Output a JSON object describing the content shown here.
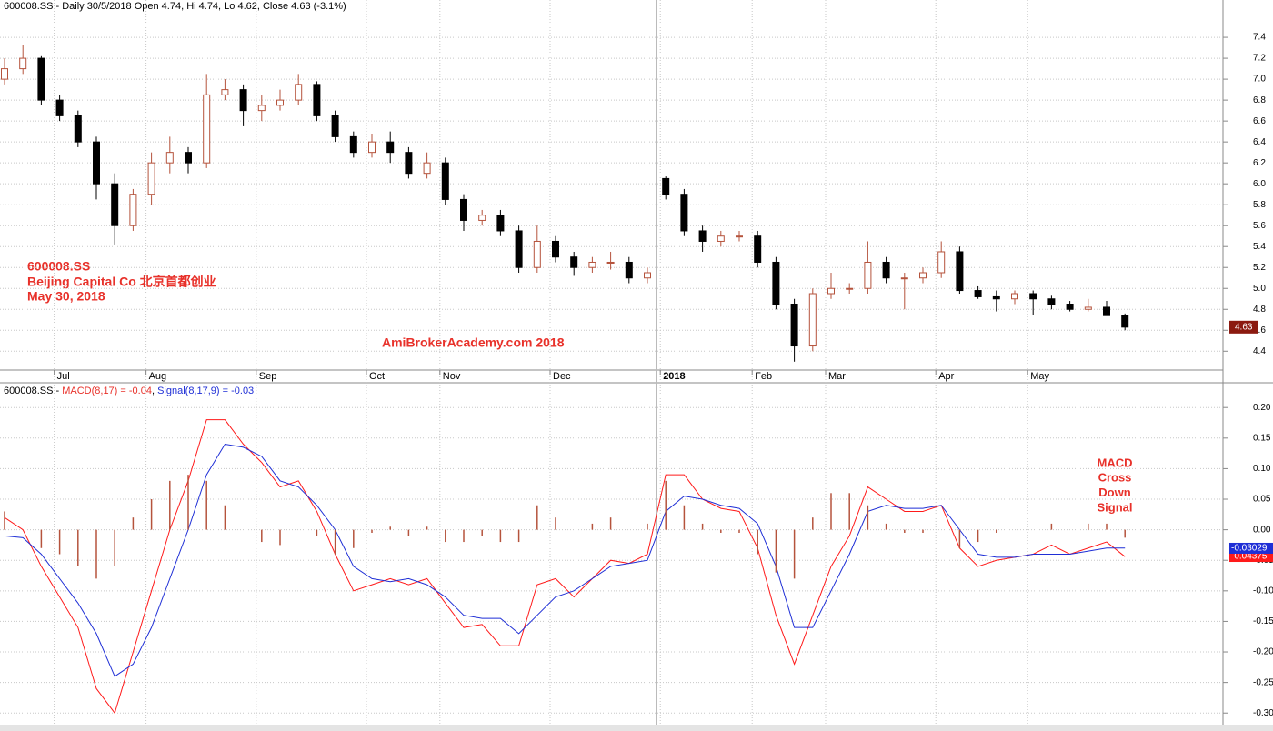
{
  "chart_data": [
    {
      "type": "candlestick",
      "title": "600008.SS - Daily 30/5/2018 Open 4.74, Hi 4.74, Lo 4.62, Close 4.63 (-3.1%)",
      "annotations": [
        "600008.SS",
        "Beijing Capital Co   北京首都创业",
        "May 30, 2018",
        "AmiBrokerAcademy.com   2018"
      ],
      "categories": [
        null,
        null,
        null,
        "Jul",
        null,
        null,
        null,
        null,
        "Aug",
        null,
        null,
        null,
        null,
        null,
        "Sep",
        null,
        null,
        null,
        null,
        null,
        "Oct",
        null,
        null,
        null,
        "Nov",
        null,
        null,
        null,
        null,
        null,
        "Dec",
        null,
        null,
        null,
        null,
        null,
        "2018",
        null,
        null,
        null,
        null,
        "Feb",
        null,
        null,
        null,
        "Mar",
        null,
        null,
        null,
        null,
        null,
        "Apr",
        null,
        null,
        null,
        null,
        "May",
        null,
        null,
        null,
        null,
        null
      ],
      "open": [
        7.0,
        7.1,
        7.2,
        6.8,
        6.65,
        6.4,
        6.0,
        5.6,
        5.9,
        6.2,
        6.3,
        6.2,
        6.85,
        6.9,
        6.7,
        6.75,
        6.8,
        6.95,
        6.65,
        6.45,
        6.3,
        6.4,
        6.3,
        6.1,
        6.2,
        5.85,
        5.65,
        5.7,
        5.55,
        5.2,
        5.45,
        5.3,
        5.2,
        5.25,
        5.25,
        5.1,
        6.05,
        5.9,
        5.55,
        5.45,
        5.5,
        5.5,
        5.25,
        4.85,
        4.45,
        4.95,
        5.0,
        5.0,
        5.25,
        5.1,
        5.1,
        5.15,
        5.35,
        4.98,
        4.92,
        4.9,
        4.95,
        4.9,
        4.85,
        4.8,
        4.82,
        4.74
      ],
      "high": [
        7.2,
        7.33,
        7.22,
        6.85,
        6.7,
        6.45,
        6.1,
        5.95,
        6.3,
        6.45,
        6.35,
        7.05,
        7.0,
        6.95,
        6.85,
        6.9,
        7.05,
        6.98,
        6.7,
        6.5,
        6.48,
        6.5,
        6.35,
        6.3,
        6.25,
        5.9,
        5.75,
        5.75,
        5.6,
        5.6,
        5.5,
        5.35,
        5.3,
        5.35,
        5.3,
        5.2,
        6.07,
        5.95,
        5.6,
        5.55,
        5.55,
        5.55,
        5.3,
        4.9,
        5.0,
        5.15,
        5.05,
        5.45,
        5.3,
        5.15,
        5.2,
        5.45,
        5.4,
        5.02,
        4.98,
        4.98,
        4.98,
        4.93,
        4.88,
        4.9,
        4.88,
        4.76
      ],
      "low": [
        6.95,
        7.05,
        6.75,
        6.6,
        6.35,
        5.85,
        5.42,
        5.55,
        5.8,
        6.1,
        6.1,
        6.15,
        6.8,
        6.55,
        6.6,
        6.7,
        6.75,
        6.6,
        6.4,
        6.25,
        6.25,
        6.2,
        6.05,
        6.05,
        5.8,
        5.55,
        5.6,
        5.5,
        5.15,
        5.15,
        5.25,
        5.12,
        5.15,
        5.18,
        5.05,
        5.05,
        5.85,
        5.5,
        5.35,
        5.4,
        5.45,
        5.2,
        4.8,
        4.3,
        4.4,
        4.9,
        4.95,
        4.95,
        5.05,
        4.8,
        5.05,
        5.1,
        4.95,
        4.9,
        4.78,
        4.85,
        4.75,
        4.8,
        4.78,
        4.78,
        4.75,
        4.6
      ],
      "close": [
        7.1,
        7.2,
        6.8,
        6.65,
        6.4,
        6.0,
        5.6,
        5.9,
        6.2,
        6.3,
        6.2,
        6.85,
        6.9,
        6.7,
        6.75,
        6.8,
        6.95,
        6.65,
        6.45,
        6.3,
        6.4,
        6.3,
        6.1,
        6.2,
        5.85,
        5.65,
        5.7,
        5.55,
        5.2,
        5.45,
        5.3,
        5.2,
        5.25,
        5.25,
        5.1,
        5.15,
        5.9,
        5.55,
        5.45,
        5.5,
        5.5,
        5.25,
        4.85,
        4.45,
        4.95,
        5.0,
        5.0,
        5.25,
        5.1,
        5.1,
        5.15,
        5.35,
        4.98,
        4.92,
        4.9,
        4.95,
        4.9,
        4.85,
        4.8,
        4.82,
        4.74,
        4.63
      ],
      "last_value": 4.63,
      "up_color": "#b5533c",
      "down_color": "#000000",
      "ylim": [
        4.22,
        7.757
      ],
      "yticks": [
        7.4,
        7.2,
        {
          "value": 7.0,
          "label": "7.0"
        },
        6.8,
        6.6,
        6.4,
        6.2,
        {
          "value": 6.0,
          "label": "6.0"
        },
        5.8,
        5.6,
        5.4,
        5.2,
        {
          "value": 5.0,
          "label": "5.0"
        },
        4.8,
        4.6,
        4.4
      ],
      "grid": true
    },
    {
      "type": "macd",
      "header_parts": [
        {
          "text": "600008.SS - ",
          "color": "#000000"
        },
        {
          "text": "MACD(8,17) = -0.04",
          "color": "#e8312a"
        },
        {
          "text": ", ",
          "color": "#000000"
        },
        {
          "text": "Signal(8,17,9) = -0.03",
          "color": "#1f2fd6"
        }
      ],
      "annotation": [
        "MACD",
        "Cross",
        "Down",
        "Signal"
      ],
      "series": [
        {
          "name": "MACD",
          "color": "#ff1a1a",
          "last_value": -0.04375,
          "values": [
            0.02,
            0.0,
            -0.06,
            -0.11,
            -0.16,
            -0.26,
            -0.3,
            -0.2,
            -0.1,
            0.0,
            0.08,
            0.18,
            0.18,
            0.14,
            0.11,
            0.07,
            0.08,
            0.03,
            -0.04,
            -0.1,
            -0.09,
            -0.08,
            -0.09,
            -0.08,
            -0.12,
            -0.16,
            -0.155,
            -0.19,
            -0.19,
            -0.09,
            -0.08,
            -0.11,
            -0.08,
            -0.05,
            -0.055,
            -0.04,
            0.09,
            0.09,
            0.05,
            0.035,
            0.03,
            -0.03,
            -0.14,
            -0.22,
            -0.14,
            -0.06,
            -0.01,
            0.07,
            0.05,
            0.03,
            0.03,
            0.04,
            -0.03,
            -0.06,
            -0.05,
            -0.045,
            -0.04,
            -0.025,
            -0.04,
            -0.03,
            -0.02,
            -0.044
          ]
        },
        {
          "name": "Signal",
          "color": "#1f2fd6",
          "last_value": -0.03029,
          "values": [
            -0.01,
            -0.013,
            -0.04,
            -0.08,
            -0.12,
            -0.17,
            -0.24,
            -0.22,
            -0.16,
            -0.08,
            0.0,
            0.09,
            0.14,
            0.135,
            0.12,
            0.08,
            0.07,
            0.04,
            0.0,
            -0.06,
            -0.08,
            -0.085,
            -0.08,
            -0.09,
            -0.11,
            -0.14,
            -0.145,
            -0.145,
            -0.17,
            -0.14,
            -0.11,
            -0.1,
            -0.08,
            -0.06,
            -0.055,
            -0.05,
            0.03,
            0.055,
            0.05,
            0.04,
            0.035,
            0.01,
            -0.06,
            -0.16,
            -0.16,
            -0.1,
            -0.04,
            0.03,
            0.04,
            0.035,
            0.035,
            0.04,
            0.0,
            -0.04,
            -0.045,
            -0.045,
            -0.04,
            -0.04,
            -0.04,
            -0.035,
            -0.03,
            -0.03
          ]
        },
        {
          "name": "Histogram",
          "color": "#b5533c",
          "values": [
            0.03,
            0.0,
            -0.03,
            -0.04,
            -0.06,
            -0.08,
            -0.06,
            0.02,
            0.05,
            0.08,
            0.09,
            0.08,
            0.04,
            0.0,
            -0.02,
            -0.025,
            0.0,
            -0.01,
            -0.04,
            -0.03,
            -0.005,
            0.005,
            -0.01,
            0.005,
            -0.02,
            -0.02,
            -0.01,
            -0.02,
            -0.02,
            0.04,
            0.02,
            0.0,
            0.01,
            0.02,
            0.0,
            0.01,
            0.08,
            0.04,
            0.01,
            -0.005,
            -0.005,
            -0.04,
            -0.07,
            -0.08,
            0.02,
            0.06,
            0.06,
            0.04,
            0.01,
            -0.005,
            -0.005,
            0.0,
            -0.03,
            -0.02,
            -0.005,
            0.0,
            0.0,
            0.01,
            0.0,
            0.01,
            0.01,
            -0.013
          ]
        }
      ],
      "ylim": [
        -0.319,
        0.239
      ],
      "yticks": [
        {
          "value": 0.2,
          "label": "0.20"
        },
        0.15,
        {
          "value": 0.1,
          "label": "0.10"
        },
        0.05,
        {
          "value": 0,
          "label": "0.00"
        },
        -0.05,
        {
          "value": -0.1,
          "label": "-0.10"
        },
        -0.15,
        {
          "value": -0.2,
          "label": "-0.20"
        },
        -0.25,
        {
          "value": -0.3,
          "label": "-0.30"
        }
      ],
      "grid": true
    }
  ]
}
